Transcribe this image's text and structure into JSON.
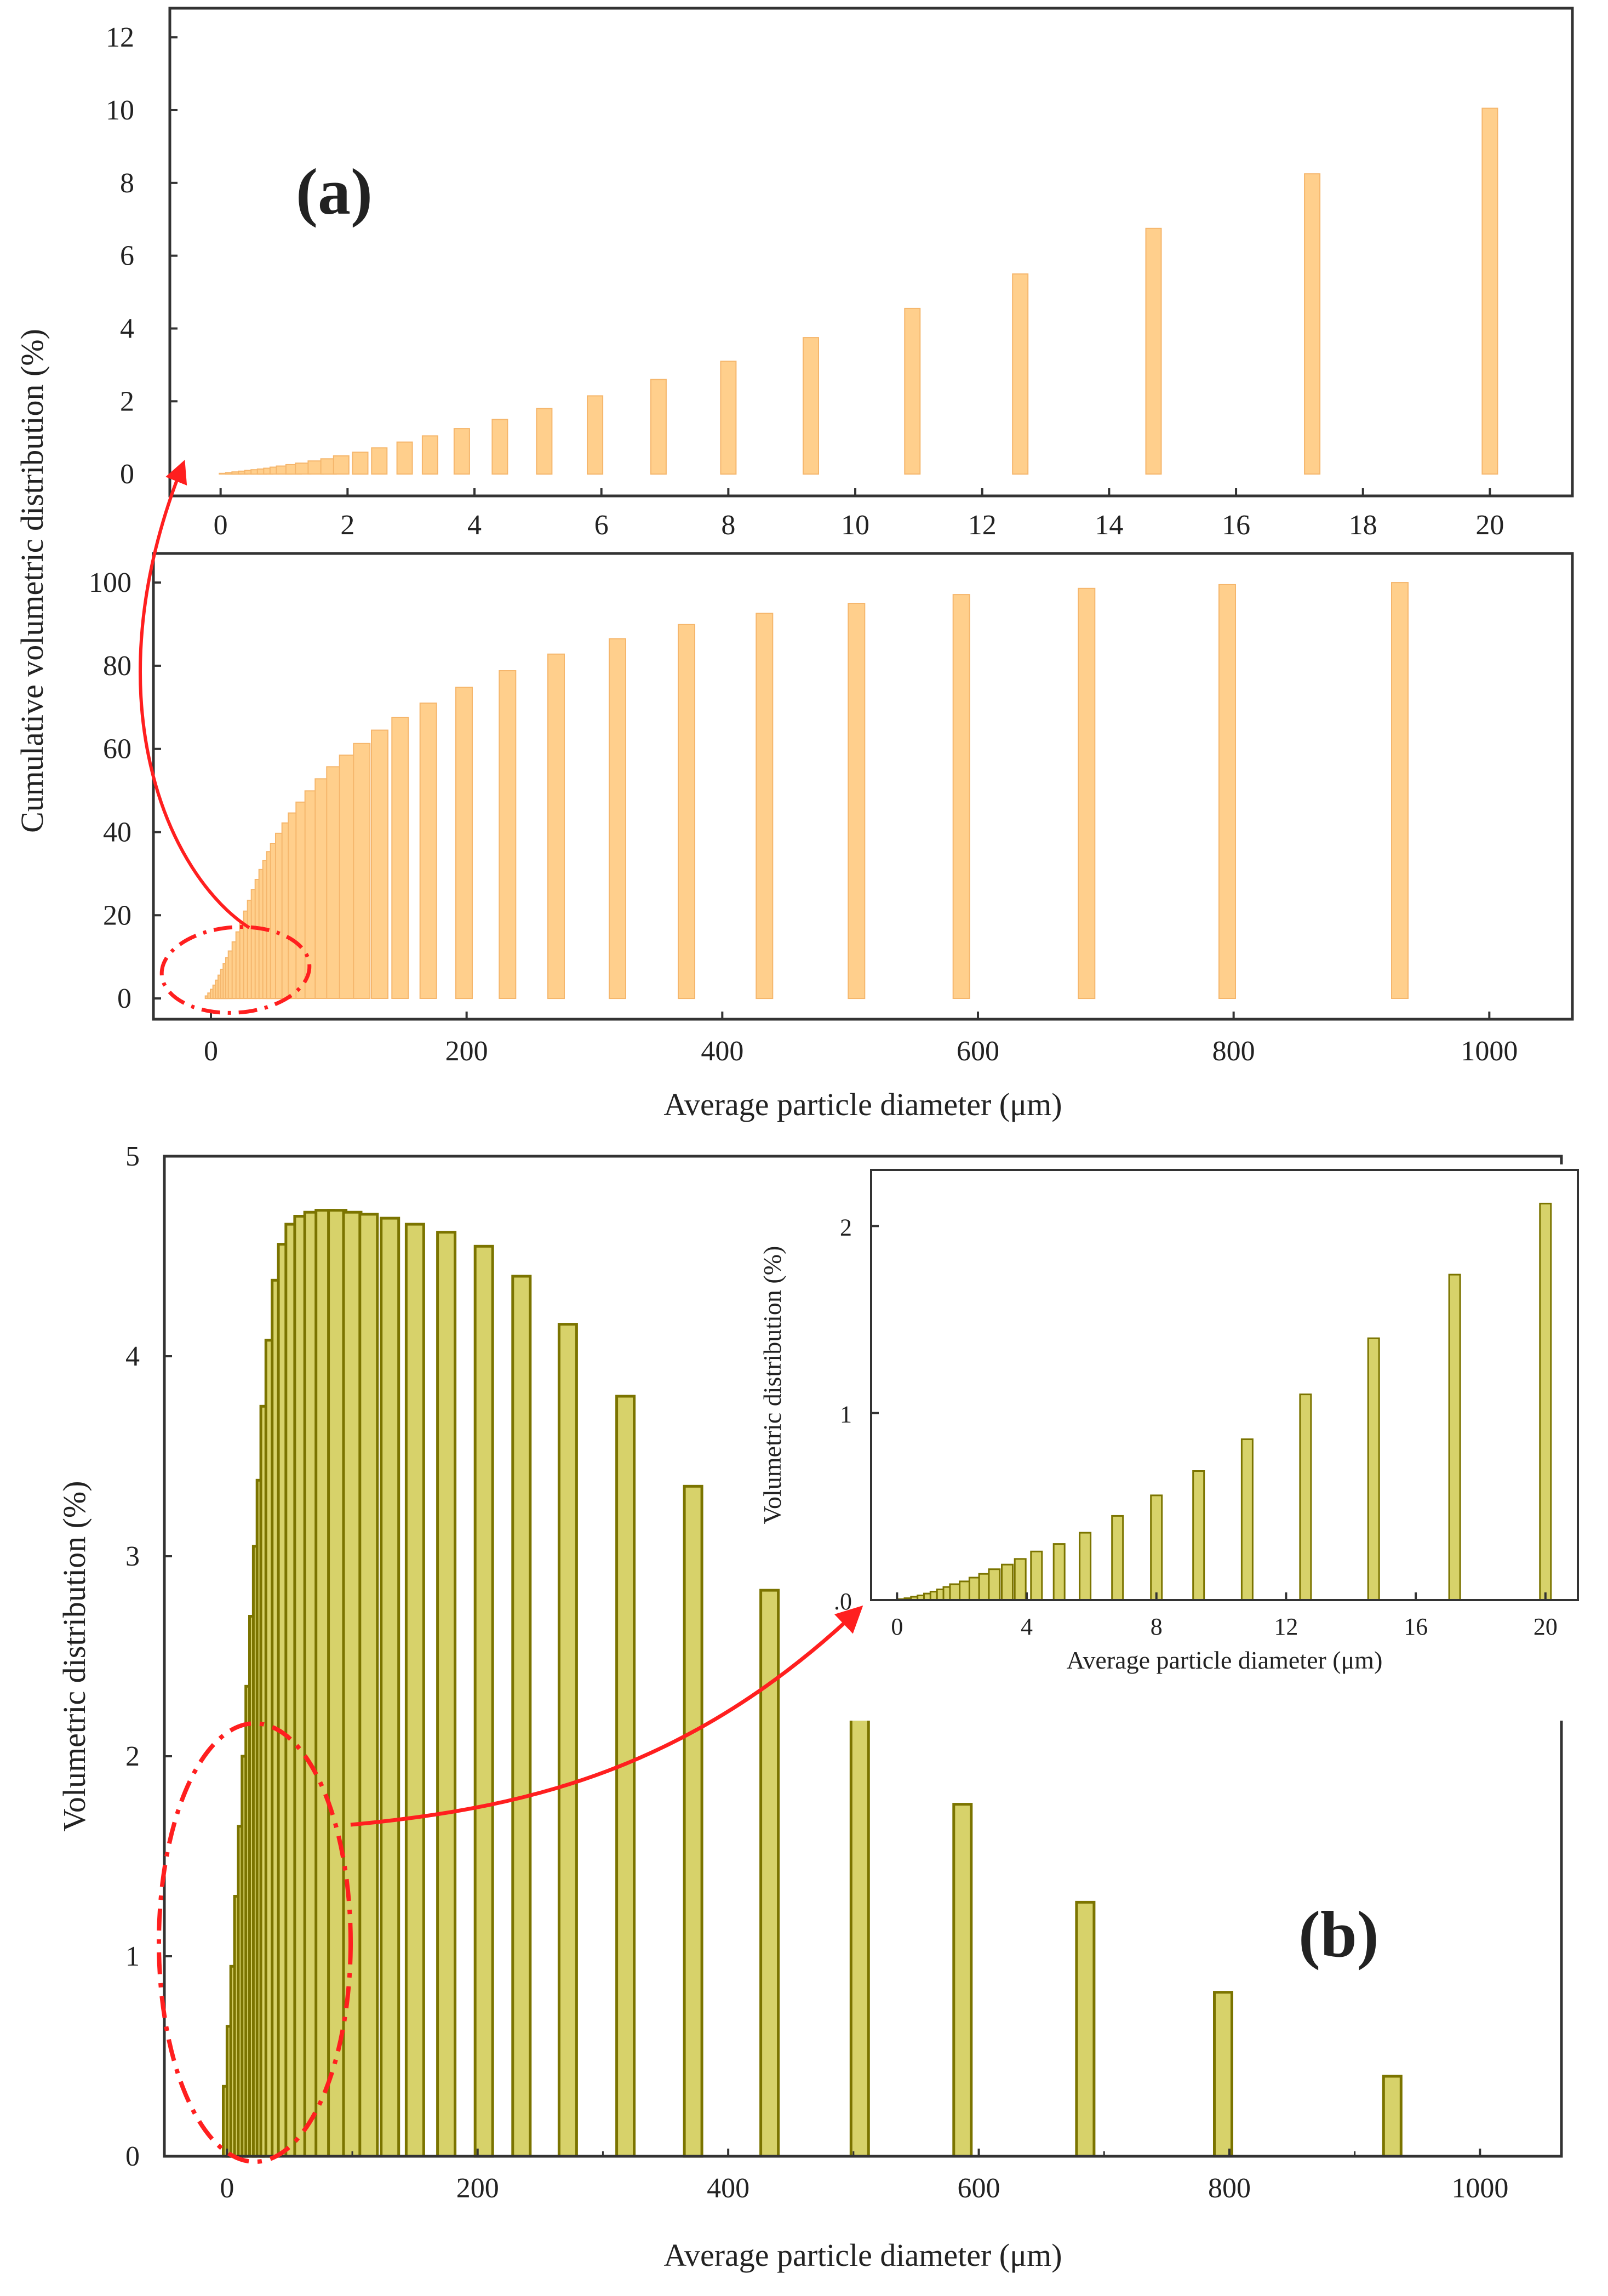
{
  "figure": {
    "panel_a_label": "(a)",
    "panel_b_label": "(b)",
    "colors": {
      "cumulative_bar": "#ffcf8c",
      "cumulative_bar_dark": "#f5b66c",
      "volumetric_bar": "#d7d26a",
      "volumetric_bar_edge": "#7b7400",
      "annotation": "#ff1f1f",
      "axis": "#333333"
    }
  },
  "chart_data": [
    {
      "id": "a_top",
      "type": "bar",
      "title": "",
      "xlabel": "",
      "ylabel": "Cumulative volumetric distribution (%)",
      "xlim": [
        -0.8,
        21.3
      ],
      "ylim": [
        -0.6,
        12.8
      ],
      "xticks": [
        "0",
        "2",
        "4",
        "6",
        "8",
        "10",
        "12",
        "14",
        "16",
        "18",
        "20"
      ],
      "yticks": [
        "0",
        "2",
        "4",
        "6",
        "8",
        "10",
        "12"
      ],
      "x": [
        0.1,
        0.2,
        0.3,
        0.4,
        0.5,
        0.6,
        0.7,
        0.8,
        0.9,
        1.0,
        1.15,
        1.3,
        1.5,
        1.7,
        1.9,
        2.2,
        2.5,
        2.9,
        3.3,
        3.8,
        4.4,
        5.1,
        5.9,
        6.9,
        8.0,
        9.3,
        10.9,
        12.6,
        14.7,
        17.2,
        20.0
      ],
      "values": [
        0.02,
        0.04,
        0.06,
        0.08,
        0.1,
        0.12,
        0.14,
        0.16,
        0.19,
        0.22,
        0.26,
        0.3,
        0.36,
        0.42,
        0.5,
        0.6,
        0.72,
        0.88,
        1.05,
        1.25,
        1.5,
        1.8,
        2.15,
        2.6,
        3.1,
        3.75,
        4.55,
        5.5,
        6.75,
        8.25,
        10.05
      ]
    },
    {
      "id": "a_bottom",
      "type": "bar",
      "title": "",
      "xlabel": "Average particle diameter (μm)",
      "ylabel": "Cumulative volumetric distribution (%)",
      "xlim": [
        -45,
        1065
      ],
      "ylim": [
        -5,
        107
      ],
      "xticks": [
        "0",
        "200",
        "400",
        "600",
        "800",
        "1000"
      ],
      "yticks": [
        "0",
        "20",
        "40",
        "60",
        "80",
        "100"
      ],
      "x": [
        2,
        4,
        6,
        8,
        10,
        12,
        14,
        16,
        18,
        20,
        23,
        26,
        29,
        32,
        35,
        38,
        41,
        44,
        47,
        50,
        53,
        57,
        62,
        67,
        73,
        80,
        88,
        97,
        107,
        118,
        132,
        148,
        170,
        198,
        232,
        270,
        318,
        372,
        433,
        505,
        587,
        685,
        795,
        930
      ],
      "values": [
        0.6,
        1.3,
        2.2,
        3.2,
        4.4,
        5.6,
        7.0,
        8.4,
        9.8,
        11.4,
        13.6,
        16.0,
        18.5,
        21.0,
        23.6,
        26.2,
        28.6,
        31.0,
        33.2,
        35.3,
        37.3,
        39.7,
        42.2,
        44.6,
        47.2,
        49.9,
        52.8,
        55.7,
        58.5,
        61.3,
        64.5,
        67.6,
        71.0,
        74.8,
        78.8,
        82.8,
        86.5,
        89.9,
        92.6,
        95.0,
        97.1,
        98.6,
        99.5,
        100.0
      ]
    },
    {
      "id": "b_main",
      "type": "bar",
      "title": "",
      "xlabel": "Average particle diameter (μm)",
      "ylabel": "Volumetric distribution (%)",
      "xlim": [
        -50,
        1065
      ],
      "ylim": [
        0,
        5
      ],
      "xticks": [
        "0",
        "200",
        "400",
        "600",
        "800",
        "1000"
      ],
      "yticks": [
        "0",
        "1",
        "2",
        "3",
        "4",
        "5"
      ],
      "x": [
        4,
        7,
        10,
        13,
        16,
        19,
        22,
        25,
        28,
        31,
        34,
        38,
        43,
        48,
        54,
        61,
        69,
        78,
        88,
        100,
        113,
        130,
        150,
        175,
        205,
        235,
        272,
        318,
        372,
        433,
        505,
        587,
        685,
        795,
        930
      ],
      "values": [
        0.35,
        0.65,
        0.95,
        1.3,
        1.65,
        2.0,
        2.35,
        2.7,
        3.05,
        3.38,
        3.75,
        4.08,
        4.38,
        4.56,
        4.66,
        4.7,
        4.72,
        4.73,
        4.73,
        4.72,
        4.71,
        4.69,
        4.66,
        4.62,
        4.55,
        4.4,
        4.16,
        3.8,
        3.35,
        2.83,
        2.28,
        1.76,
        1.27,
        0.82,
        0.4
      ]
    },
    {
      "id": "b_inset",
      "type": "bar",
      "title": "",
      "xlabel": "Average particle diameter (μm)",
      "ylabel": "Volumetric distribution (%)",
      "xlim": [
        -0.8,
        21.0
      ],
      "ylim": [
        0,
        2.3
      ],
      "xticks": [
        "0",
        "4",
        "8",
        "12",
        "16",
        "20"
      ],
      "yticks": [
        ".0",
        "1",
        "2"
      ],
      "x": [
        0.2,
        0.4,
        0.6,
        0.8,
        1.0,
        1.2,
        1.4,
        1.6,
        1.8,
        2.1,
        2.4,
        2.7,
        3.0,
        3.4,
        3.8,
        4.3,
        5.0,
        5.8,
        6.8,
        8.0,
        9.3,
        10.8,
        12.6,
        14.7,
        17.2,
        20.0
      ],
      "values": [
        0.005,
        0.01,
        0.018,
        0.025,
        0.035,
        0.045,
        0.057,
        0.07,
        0.085,
        0.1,
        0.12,
        0.14,
        0.165,
        0.19,
        0.22,
        0.26,
        0.3,
        0.36,
        0.45,
        0.56,
        0.69,
        0.86,
        1.1,
        1.4,
        1.74,
        2.12
      ]
    }
  ]
}
